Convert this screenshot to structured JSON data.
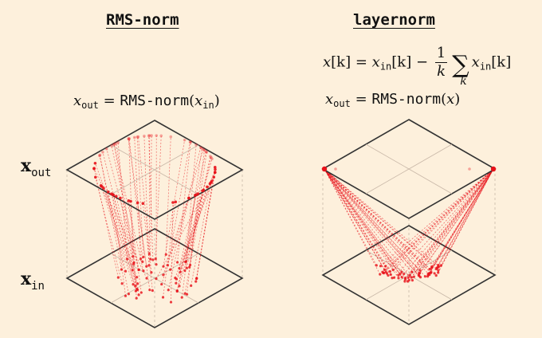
{
  "panels": {
    "left": {
      "title": "RMS-norm",
      "equation": {
        "lhs_var": "x",
        "lhs_sub": "out",
        "eq": "=",
        "func": "RMS-norm",
        "arg_var": "x",
        "arg_sub": "in"
      }
    },
    "right": {
      "title": "layernorm",
      "center_equation": {
        "lhs_var": "x",
        "lhs_idx": "[k]",
        "eq": "=",
        "x_var": "x",
        "x_sub": "in",
        "x_idx": "[k]",
        "minus": "−",
        "frac_num": "1",
        "frac_den": "k",
        "sum_symbol": "∑",
        "sum_index": "k",
        "x2_var": "x",
        "x2_sub": "in",
        "x2_idx": "[k]"
      },
      "equation": {
        "lhs_var": "x",
        "lhs_sub": "out",
        "eq": "=",
        "func": "RMS-norm",
        "arg_open": "(",
        "arg_var": "x",
        "arg_close": ")"
      }
    }
  },
  "labels": {
    "out_var": "x",
    "out_sub": "out",
    "in_var": "x",
    "in_sub": "in"
  },
  "colors": {
    "background": "#fdf0dc",
    "points": "#e8121a",
    "plane_edge": "#333333",
    "guide": "#c9b8a8"
  }
}
